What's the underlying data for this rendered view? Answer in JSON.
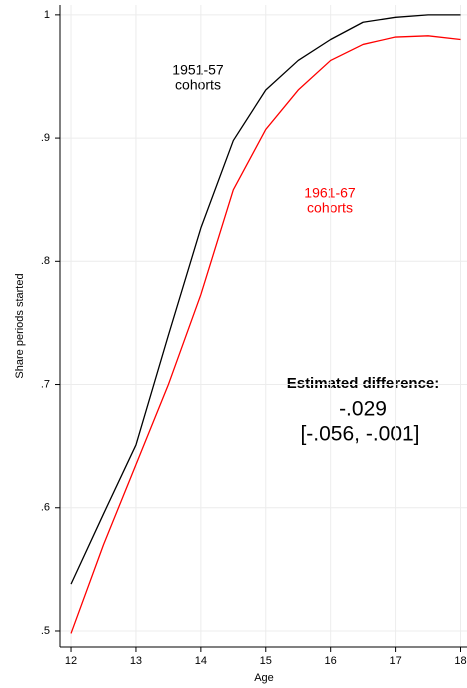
{
  "chart_data": {
    "type": "line",
    "x_label": "Age",
    "y_label": "Share periods started",
    "x": [
      12,
      12.5,
      13,
      13.5,
      14,
      14.5,
      15,
      15.5,
      16,
      16.5,
      17,
      17.5,
      18
    ],
    "series": [
      {
        "name": "1951-57 cohorts",
        "color": "#000000",
        "values": [
          0.538,
          0.595,
          0.651,
          0.74,
          0.827,
          0.898,
          0.939,
          0.963,
          0.98,
          0.994,
          0.998,
          1.0,
          1.0
        ]
      },
      {
        "name": "1961-67 cohorts",
        "color": "#ff0000",
        "values": [
          0.498,
          0.57,
          0.635,
          0.7,
          0.773,
          0.858,
          0.907,
          0.939,
          0.963,
          0.976,
          0.982,
          0.983,
          0.98
        ]
      }
    ],
    "series_labels": [
      [
        "1951-57",
        "cohorts"
      ],
      [
        "1961-67",
        "cohorts"
      ]
    ],
    "annotations": [
      "Estimated difference:",
      "-.029",
      "[-.056, -.001]"
    ],
    "xlim": [
      11.83,
      18.1
    ],
    "ylim": [
      0.487,
      1.008
    ],
    "xticks": [
      12,
      13,
      14,
      15,
      16,
      17,
      18
    ],
    "yticks": [
      {
        "value": 0.5,
        "label": ".5"
      },
      {
        "value": 0.6,
        "label": ".6"
      },
      {
        "value": 0.7,
        "label": ".7"
      },
      {
        "value": 0.8,
        "label": ".8"
      },
      {
        "value": 0.9,
        "label": ".9"
      },
      1
    ],
    "grid": true
  }
}
